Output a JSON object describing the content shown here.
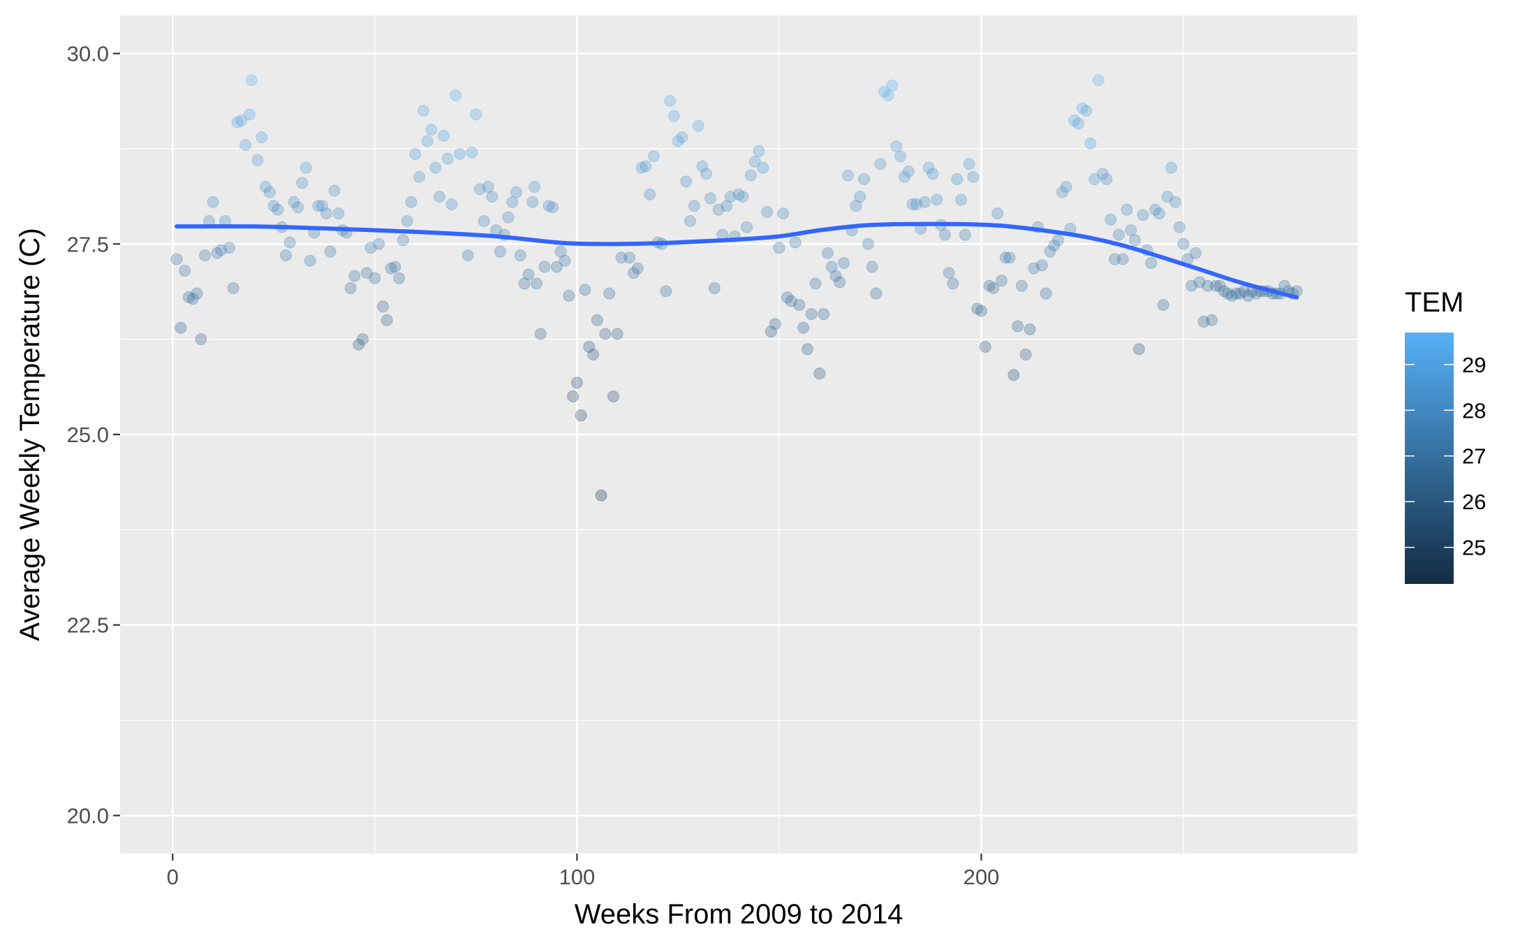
{
  "chart_data": {
    "type": "scatter",
    "xlabel": "Weeks From 2009 to 2014",
    "ylabel": "Average Weekly Temperature (C)",
    "xlim": [
      -13,
      293
    ],
    "ylim": [
      19.5,
      30.5
    ],
    "x_ticks": [
      0,
      100,
      200
    ],
    "x_tick_labels": [
      "0",
      "100",
      "200"
    ],
    "y_ticks": [
      20.0,
      22.5,
      25.0,
      27.5,
      30.0
    ],
    "y_tick_labels": [
      "20.0",
      "22.5",
      "25.0",
      "27.5",
      "30.0"
    ],
    "grid": true,
    "legend": {
      "title": "TEM",
      "position": "right",
      "type": "colorbar",
      "range": [
        24.2,
        29.7
      ],
      "ticks": [
        25,
        26,
        27,
        28,
        29
      ],
      "tick_labels": [
        "25",
        "26",
        "27",
        "28",
        "29"
      ],
      "low_color": "#132B43",
      "high_color": "#56B1F7"
    },
    "series": [
      {
        "type": "scatter",
        "color_by": "TEM",
        "alpha": 0.3,
        "points": [
          [
            1,
            27.3
          ],
          [
            2,
            26.4
          ],
          [
            3,
            27.15
          ],
          [
            4,
            26.8
          ],
          [
            5,
            26.78
          ],
          [
            6,
            26.85
          ],
          [
            7,
            26.25
          ],
          [
            8,
            27.35
          ],
          [
            9,
            27.8
          ],
          [
            10,
            28.05
          ],
          [
            11,
            27.38
          ],
          [
            12,
            27.42
          ],
          [
            13,
            27.8
          ],
          [
            14,
            27.45
          ],
          [
            15,
            26.92
          ],
          [
            16,
            29.1
          ],
          [
            17,
            29.12
          ],
          [
            18,
            28.8
          ],
          [
            19,
            29.2
          ],
          [
            19.5,
            29.65
          ],
          [
            21,
            28.6
          ],
          [
            22,
            28.9
          ],
          [
            23,
            28.25
          ],
          [
            24,
            28.18
          ],
          [
            25,
            28.0
          ],
          [
            26,
            27.95
          ],
          [
            27,
            27.72
          ],
          [
            28,
            27.35
          ],
          [
            29,
            27.52
          ],
          [
            30,
            28.05
          ],
          [
            31,
            27.98
          ],
          [
            32,
            28.3
          ],
          [
            33,
            28.5
          ],
          [
            34,
            27.28
          ],
          [
            35,
            27.65
          ],
          [
            36,
            28.0
          ],
          [
            37,
            28.0
          ],
          [
            38,
            27.9
          ],
          [
            39,
            27.4
          ],
          [
            40,
            28.2
          ],
          [
            41,
            27.9
          ],
          [
            42,
            27.68
          ],
          [
            43,
            27.65
          ],
          [
            44,
            26.92
          ],
          [
            45,
            27.08
          ],
          [
            46,
            26.18
          ],
          [
            47,
            26.25
          ],
          [
            48,
            27.12
          ],
          [
            49,
            27.45
          ],
          [
            50,
            27.05
          ],
          [
            51,
            27.5
          ],
          [
            52,
            26.68
          ],
          [
            53,
            26.5
          ],
          [
            54,
            27.18
          ],
          [
            55,
            27.2
          ],
          [
            56,
            27.05
          ],
          [
            57,
            27.55
          ],
          [
            58,
            27.8
          ],
          [
            59,
            28.05
          ],
          [
            60,
            28.68
          ],
          [
            61,
            28.38
          ],
          [
            62,
            29.25
          ],
          [
            63,
            28.85
          ],
          [
            64,
            29.0
          ],
          [
            65,
            28.5
          ],
          [
            66,
            28.12
          ],
          [
            67,
            28.92
          ],
          [
            68,
            28.62
          ],
          [
            69,
            28.02
          ],
          [
            70,
            29.45
          ],
          [
            71,
            28.68
          ],
          [
            73,
            27.35
          ],
          [
            74,
            28.7
          ],
          [
            75,
            29.2
          ],
          [
            76,
            28.22
          ],
          [
            77,
            27.8
          ],
          [
            78,
            28.25
          ],
          [
            79,
            28.12
          ],
          [
            80,
            27.68
          ],
          [
            81,
            27.4
          ],
          [
            82,
            27.62
          ],
          [
            83,
            27.85
          ],
          [
            84,
            28.05
          ],
          [
            85,
            28.18
          ],
          [
            86,
            27.35
          ],
          [
            87,
            26.98
          ],
          [
            88,
            27.1
          ],
          [
            89,
            28.05
          ],
          [
            89.5,
            28.25
          ],
          [
            90,
            26.98
          ],
          [
            91,
            26.32
          ],
          [
            92,
            27.2
          ],
          [
            93,
            28.0
          ],
          [
            94,
            27.98
          ],
          [
            95,
            27.2
          ],
          [
            96,
            27.4
          ],
          [
            97,
            27.28
          ],
          [
            98,
            26.82
          ],
          [
            99,
            25.5
          ],
          [
            100,
            25.68
          ],
          [
            101,
            25.25
          ],
          [
            102,
            26.9
          ],
          [
            103,
            26.15
          ],
          [
            104,
            26.05
          ],
          [
            105,
            26.5
          ],
          [
            106,
            24.2
          ],
          [
            107,
            26.32
          ],
          [
            108,
            26.85
          ],
          [
            109,
            25.5
          ],
          [
            110,
            26.32
          ],
          [
            111,
            27.32
          ],
          [
            113,
            27.32
          ],
          [
            114,
            27.12
          ],
          [
            115,
            27.18
          ],
          [
            116,
            28.5
          ],
          [
            117,
            28.52
          ],
          [
            118,
            28.15
          ],
          [
            119,
            28.65
          ],
          [
            120,
            27.52
          ],
          [
            121,
            27.5
          ],
          [
            122,
            26.88
          ],
          [
            123,
            29.38
          ],
          [
            124,
            29.18
          ],
          [
            125,
            28.85
          ],
          [
            126,
            28.9
          ],
          [
            127,
            28.32
          ],
          [
            128,
            27.8
          ],
          [
            129,
            28.0
          ],
          [
            130,
            29.05
          ],
          [
            131,
            28.52
          ],
          [
            132,
            28.42
          ],
          [
            133,
            28.1
          ],
          [
            134,
            26.92
          ],
          [
            135,
            27.95
          ],
          [
            136,
            27.62
          ],
          [
            137,
            28.0
          ],
          [
            138,
            28.12
          ],
          [
            139,
            27.6
          ],
          [
            140,
            28.15
          ],
          [
            141,
            28.12
          ],
          [
            142,
            27.72
          ],
          [
            143,
            28.4
          ],
          [
            144,
            28.58
          ],
          [
            145,
            28.72
          ],
          [
            146,
            28.5
          ],
          [
            147,
            27.92
          ],
          [
            148,
            26.35
          ],
          [
            149,
            26.45
          ],
          [
            150,
            27.45
          ],
          [
            151,
            27.9
          ],
          [
            152,
            26.8
          ],
          [
            153,
            26.75
          ],
          [
            154,
            27.52
          ],
          [
            155,
            26.7
          ],
          [
            156,
            26.4
          ],
          [
            157,
            26.12
          ],
          [
            158,
            26.58
          ],
          [
            159,
            26.98
          ],
          [
            160,
            25.8
          ],
          [
            161,
            26.58
          ],
          [
            162,
            27.38
          ],
          [
            163,
            27.2
          ],
          [
            164,
            27.08
          ],
          [
            165,
            27.0
          ],
          [
            166,
            27.25
          ],
          [
            167,
            28.4
          ],
          [
            168,
            27.68
          ],
          [
            169,
            28.0
          ],
          [
            170,
            28.12
          ],
          [
            171,
            28.35
          ],
          [
            172,
            27.5
          ],
          [
            173,
            27.2
          ],
          [
            174,
            26.85
          ],
          [
            175,
            28.55
          ],
          [
            176,
            29.5
          ],
          [
            177,
            29.45
          ],
          [
            178,
            29.58
          ],
          [
            179,
            28.78
          ],
          [
            180,
            28.65
          ],
          [
            181,
            28.38
          ],
          [
            182,
            28.45
          ],
          [
            183,
            28.02
          ],
          [
            184,
            28.02
          ],
          [
            185,
            27.7
          ],
          [
            186,
            28.05
          ],
          [
            187,
            28.5
          ],
          [
            188,
            28.42
          ],
          [
            189,
            28.08
          ],
          [
            190,
            27.75
          ],
          [
            191,
            27.62
          ],
          [
            192,
            27.12
          ],
          [
            193,
            26.98
          ],
          [
            194,
            28.35
          ],
          [
            195,
            28.08
          ],
          [
            196,
            27.62
          ],
          [
            197,
            28.55
          ],
          [
            198,
            28.38
          ],
          [
            199,
            26.65
          ],
          [
            200,
            26.62
          ],
          [
            201,
            26.15
          ],
          [
            202,
            26.95
          ],
          [
            203,
            26.92
          ],
          [
            204,
            27.9
          ],
          [
            205,
            27.02
          ],
          [
            206,
            27.32
          ],
          [
            207,
            27.32
          ],
          [
            208,
            25.78
          ],
          [
            209,
            26.42
          ],
          [
            210,
            26.95
          ],
          [
            211,
            26.05
          ],
          [
            212,
            26.38
          ],
          [
            213,
            27.18
          ],
          [
            214,
            27.72
          ],
          [
            215,
            27.22
          ],
          [
            216,
            26.85
          ],
          [
            217,
            27.4
          ],
          [
            218,
            27.48
          ],
          [
            219,
            27.55
          ],
          [
            220,
            28.18
          ],
          [
            221,
            28.25
          ],
          [
            222,
            27.7
          ],
          [
            223,
            29.12
          ],
          [
            224,
            29.08
          ],
          [
            225,
            29.28
          ],
          [
            226,
            29.25
          ],
          [
            227,
            28.82
          ],
          [
            228,
            28.35
          ],
          [
            229,
            29.65
          ],
          [
            230,
            28.42
          ],
          [
            231,
            28.35
          ],
          [
            232,
            27.82
          ],
          [
            233,
            27.3
          ],
          [
            234,
            27.62
          ],
          [
            235,
            27.3
          ],
          [
            236,
            27.95
          ],
          [
            237,
            27.68
          ],
          [
            238,
            27.55
          ],
          [
            239,
            26.12
          ],
          [
            240,
            27.88
          ],
          [
            241,
            27.42
          ],
          [
            242,
            27.25
          ],
          [
            243,
            27.95
          ],
          [
            244,
            27.9
          ],
          [
            245,
            26.7
          ],
          [
            246,
            28.12
          ],
          [
            247,
            28.5
          ],
          [
            248,
            28.05
          ],
          [
            249,
            27.72
          ],
          [
            250,
            27.5
          ],
          [
            251,
            27.3
          ],
          [
            252,
            26.95
          ],
          [
            253,
            27.38
          ],
          [
            254,
            27.0
          ],
          [
            255,
            26.48
          ],
          [
            256,
            26.95
          ],
          [
            257,
            26.5
          ],
          [
            258,
            26.95
          ],
          [
            259,
            26.95
          ],
          [
            260,
            26.88
          ],
          [
            261,
            26.85
          ],
          [
            262,
            26.82
          ],
          [
            263,
            26.85
          ],
          [
            264,
            26.85
          ],
          [
            265,
            26.88
          ],
          [
            266,
            26.82
          ],
          [
            267,
            26.88
          ],
          [
            268,
            26.85
          ],
          [
            269,
            26.88
          ],
          [
            270,
            26.88
          ],
          [
            271,
            26.88
          ],
          [
            272,
            26.85
          ],
          [
            273,
            26.85
          ],
          [
            274,
            26.85
          ],
          [
            275,
            26.95
          ],
          [
            276,
            26.88
          ],
          [
            277,
            26.85
          ],
          [
            278,
            26.88
          ]
        ]
      },
      {
        "type": "line",
        "smooth": true,
        "color": "#3366FF",
        "points": [
          [
            1,
            27.73
          ],
          [
            20,
            27.73
          ],
          [
            40,
            27.7
          ],
          [
            60,
            27.66
          ],
          [
            80,
            27.6
          ],
          [
            95,
            27.52
          ],
          [
            105,
            27.5
          ],
          [
            120,
            27.51
          ],
          [
            140,
            27.56
          ],
          [
            150,
            27.6
          ],
          [
            160,
            27.68
          ],
          [
            170,
            27.74
          ],
          [
            180,
            27.76
          ],
          [
            195,
            27.76
          ],
          [
            205,
            27.74
          ],
          [
            215,
            27.68
          ],
          [
            225,
            27.6
          ],
          [
            235,
            27.48
          ],
          [
            245,
            27.32
          ],
          [
            255,
            27.15
          ],
          [
            265,
            26.98
          ],
          [
            278,
            26.8
          ]
        ]
      }
    ]
  }
}
